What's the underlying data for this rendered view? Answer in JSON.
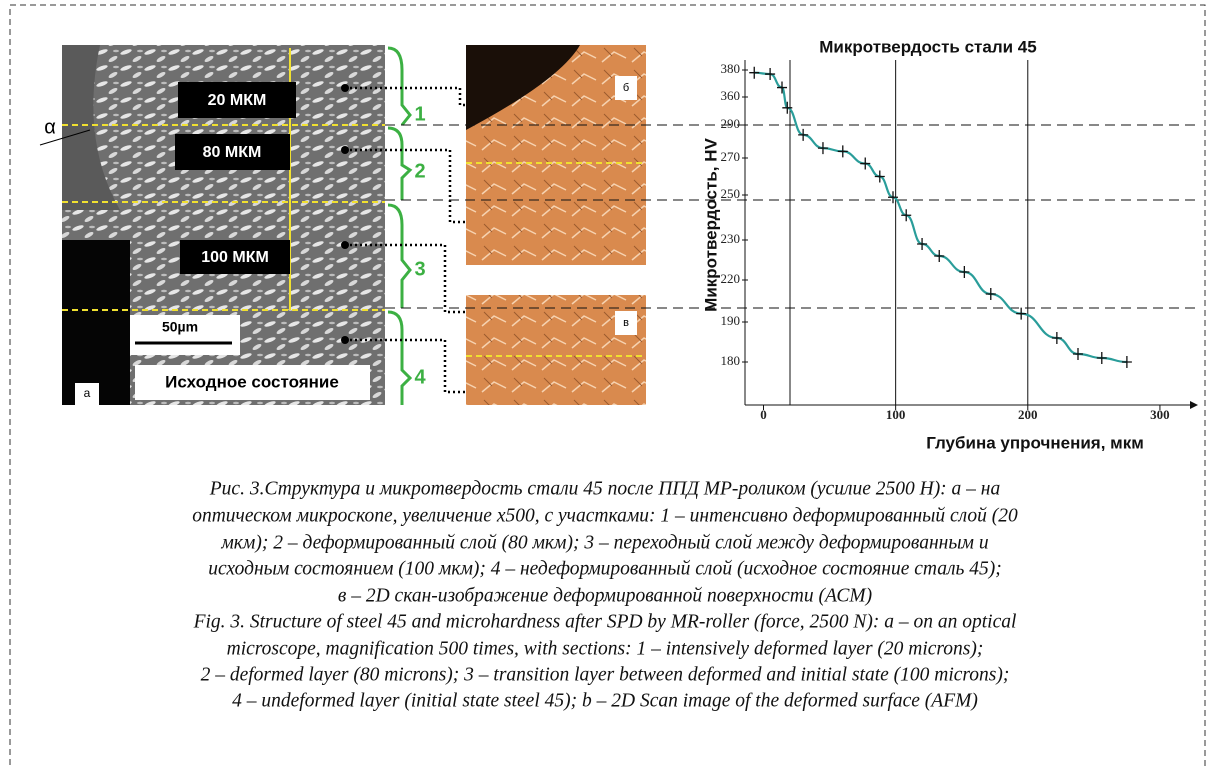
{
  "figure": {
    "panel_a": {
      "labels": [
        "20 МКМ",
        "80 МКМ",
        "100 МКМ"
      ],
      "scale": "50µm",
      "state": "Исходное состояние",
      "letter": "а",
      "angle": "α",
      "zones": [
        "1",
        "2",
        "3",
        "4"
      ]
    },
    "panel_b": {
      "letter": "б"
    },
    "panel_c": {
      "letter": "в"
    }
  },
  "chart_data": {
    "type": "line",
    "title": "Микротвердость стали 45",
    "x_label": "Глубина упрочнения, мкм",
    "y_label": "Микротвердость, HV",
    "x": [
      -7,
      5,
      14,
      18,
      30,
      45,
      60,
      77,
      88,
      98,
      108,
      120,
      133,
      152,
      172,
      195,
      222,
      238,
      256,
      275
    ],
    "values": [
      378,
      377,
      367,
      333,
      284,
      276,
      274,
      267,
      260,
      249,
      241,
      229,
      226,
      222,
      210,
      196,
      186,
      182,
      181,
      180
    ],
    "color": "#2a9d9a",
    "marker_color": "#111111",
    "xlim": [
      -14,
      322
    ],
    "xticks": [
      0,
      100,
      200,
      300
    ],
    "yticks": [
      380,
      360,
      290,
      270,
      250,
      230,
      220,
      190,
      180
    ]
  },
  "caption": {
    "ru": [
      "Рис. 3.Структура и микротвердость стали 45 после ППД МР-роликом (усилие 2500 Н): а – на",
      "оптическом микроскопе, увеличение х500, с участками: 1 – интенсивно деформированный слой (20",
      "мкм); 2 – деформированный слой (80 мкм); 3 – переходный слой между деформированным и",
      "исходным состоянием (100 мкм); 4 – недеформированный слой (исходное состояние сталь 45);",
      "в – 2D скан-изображение деформированной поверхности (АСМ)"
    ],
    "en": [
      "Fig. 3. Structure of steel 45 and microhardness after SPD by MR-roller (force, 2500 N): a – on an optical",
      "microscope, magnification 500 times, with sections: 1 – intensively deformed layer (20 microns);",
      "2 – deformed layer (80 microns); 3 – transition layer between deformed and initial state (100 microns);",
      "4 – undeformed layer (initial state steel 45); b – 2D Scan image of the deformed surface (AFM)"
    ]
  }
}
